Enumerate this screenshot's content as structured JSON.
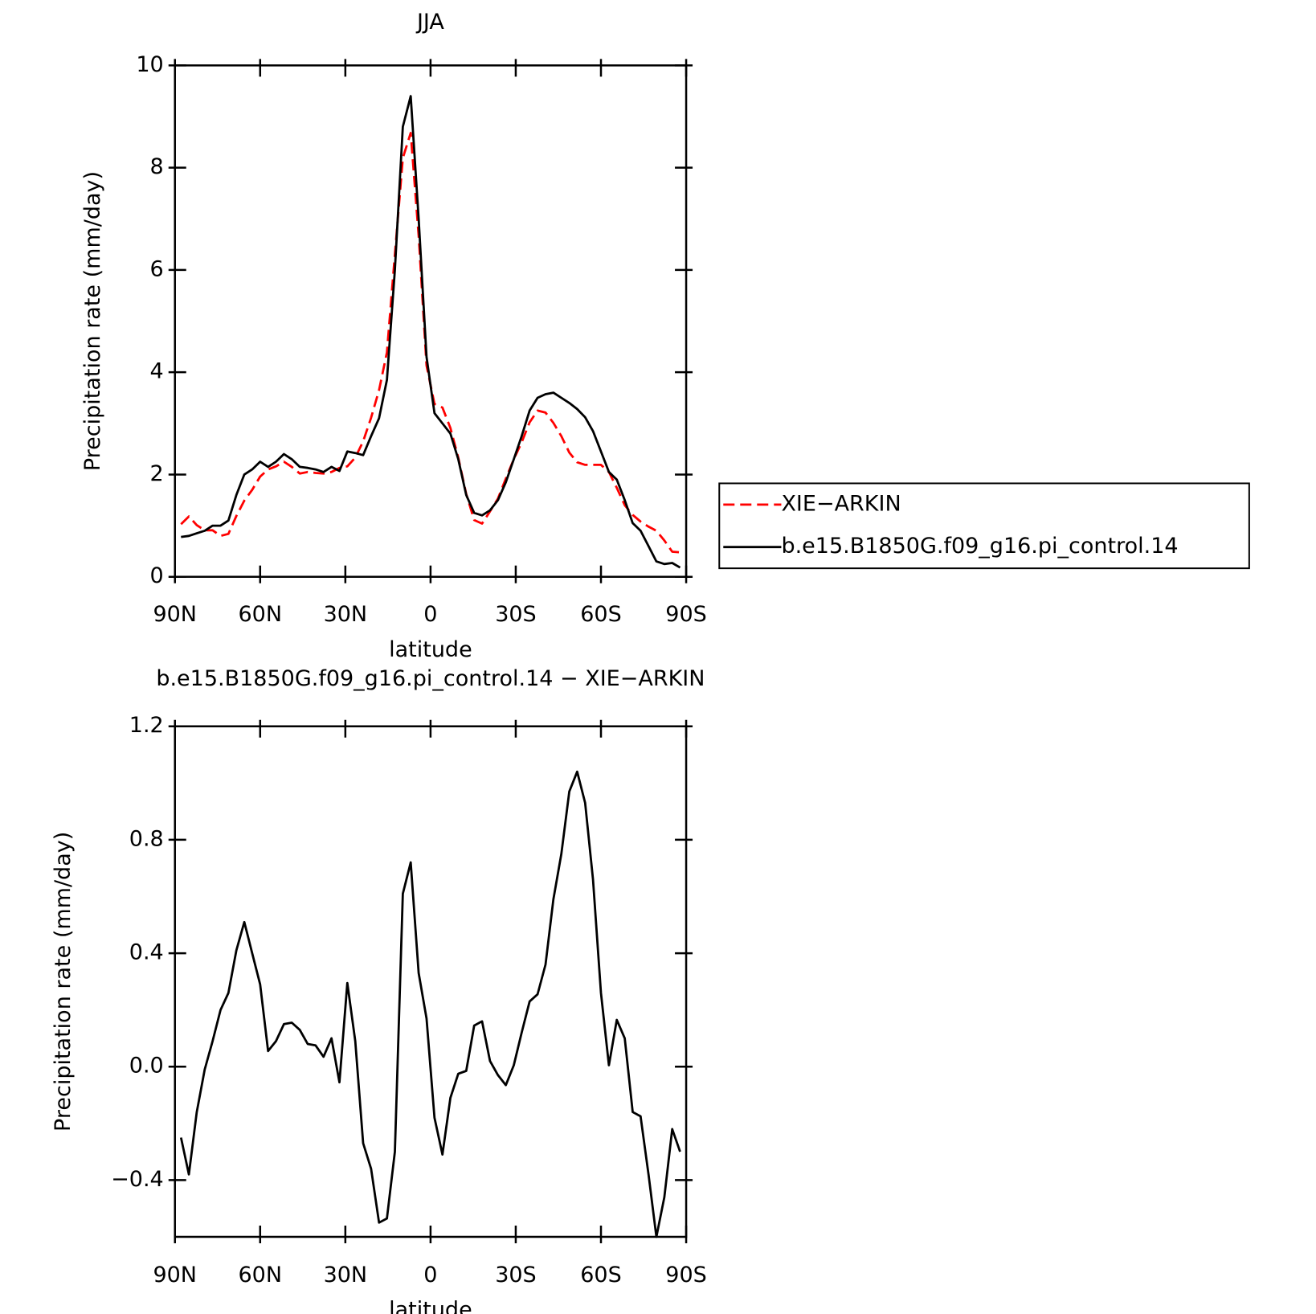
{
  "chart_data": [
    {
      "type": "line",
      "title": "JJA",
      "xlabel": "latitude",
      "ylabel": "Precipitation rate (mm/day)",
      "x": [
        87.86,
        85.1,
        82.31,
        79.53,
        76.74,
        73.95,
        71.16,
        68.37,
        65.58,
        62.79,
        60.0,
        57.21,
        54.42,
        51.63,
        48.84,
        46.05,
        43.26,
        40.47,
        37.67,
        34.88,
        32.09,
        29.3,
        26.51,
        23.72,
        20.93,
        18.14,
        15.35,
        12.56,
        9.77,
        6.98,
        4.19,
        1.4,
        -1.4,
        -4.19,
        -6.98,
        -9.77,
        -12.56,
        -15.35,
        -18.14,
        -20.93,
        -23.72,
        -26.51,
        -29.3,
        -32.09,
        -34.88,
        -37.67,
        -40.47,
        -43.26,
        -46.05,
        -48.84,
        -51.63,
        -54.42,
        -57.21,
        -60.0,
        -62.79,
        -65.58,
        -68.37,
        -71.16,
        -73.95,
        -76.74,
        -79.53,
        -82.31,
        -85.1,
        -87.86
      ],
      "series": [
        {
          "name": "XIE−ARKIN",
          "color": "#ff0000",
          "dash": true,
          "values": [
            1.03,
            1.18,
            1.01,
            0.91,
            0.91,
            0.8,
            0.84,
            1.19,
            1.49,
            1.7,
            1.96,
            2.1,
            2.16,
            2.25,
            2.15,
            2.02,
            2.05,
            2.03,
            2.02,
            2.05,
            2.13,
            2.16,
            2.33,
            2.65,
            3.11,
            3.65,
            4.39,
            6.3,
            8.19,
            8.68,
            6.67,
            4.13,
            3.38,
            3.31,
            2.91,
            2.33,
            1.62,
            1.11,
            1.04,
            1.28,
            1.53,
            1.92,
            2.3,
            2.63,
            3.02,
            3.25,
            3.21,
            3.01,
            2.75,
            2.43,
            2.24,
            2.19,
            2.19,
            2.19,
            2.05,
            1.74,
            1.4,
            1.21,
            1.08,
            0.98,
            0.9,
            0.71,
            0.49,
            0.48
          ]
        },
        {
          "name": "b.e15.B1850G.f09_g16.pi_control.14",
          "color": "#000000",
          "dash": false,
          "values": [
            0.78,
            0.8,
            0.85,
            0.9,
            1.0,
            1.0,
            1.1,
            1.6,
            2.0,
            2.1,
            2.25,
            2.15,
            2.25,
            2.4,
            2.3,
            2.15,
            2.13,
            2.1,
            2.05,
            2.15,
            2.07,
            2.45,
            2.42,
            2.38,
            2.75,
            3.1,
            3.85,
            6.0,
            8.8,
            9.4,
            7.0,
            4.3,
            3.2,
            3.0,
            2.8,
            2.3,
            1.6,
            1.25,
            1.2,
            1.3,
            1.5,
            1.85,
            2.3,
            2.75,
            3.25,
            3.5,
            3.57,
            3.6,
            3.5,
            3.4,
            3.28,
            3.12,
            2.85,
            2.45,
            2.05,
            1.9,
            1.5,
            1.05,
            0.9,
            0.6,
            0.3,
            0.25,
            0.27,
            0.18
          ]
        }
      ],
      "xlim": [
        90,
        -90
      ],
      "xticks": [
        {
          "value": 90,
          "label": "90N"
        },
        {
          "value": 60,
          "label": "60N"
        },
        {
          "value": 30,
          "label": "30N"
        },
        0,
        {
          "value": -30,
          "label": "30S"
        },
        {
          "value": -60,
          "label": "60S"
        },
        {
          "value": -90,
          "label": "90S"
        }
      ],
      "ylim": [
        0,
        10
      ],
      "yticks": [
        0,
        2,
        4,
        6,
        8,
        10
      ],
      "legend": "right"
    },
    {
      "type": "line",
      "title": "b.e15.B1850G.f09_g16.pi_control.14 − XIE−ARKIN",
      "xlabel": "latitude",
      "ylabel": "Precipitation rate (mm/day)",
      "x": [
        87.86,
        85.1,
        82.31,
        79.53,
        76.74,
        73.95,
        71.16,
        68.37,
        65.58,
        62.79,
        60.0,
        57.21,
        54.42,
        51.63,
        48.84,
        46.05,
        43.26,
        40.47,
        37.67,
        34.88,
        32.09,
        29.3,
        26.51,
        23.72,
        20.93,
        18.14,
        15.35,
        12.56,
        9.77,
        6.98,
        4.19,
        1.4,
        -1.4,
        -4.19,
        -6.98,
        -9.77,
        -12.56,
        -15.35,
        -18.14,
        -20.93,
        -23.72,
        -26.51,
        -29.3,
        -32.09,
        -34.88,
        -37.67,
        -40.47,
        -43.26,
        -46.05,
        -48.84,
        -51.63,
        -54.42,
        -57.21,
        -60.0,
        -62.79,
        -65.58,
        -68.37,
        -71.16,
        -73.95,
        -76.74,
        -79.53,
        -82.31,
        -85.1,
        -87.86
      ],
      "series": [
        {
          "color": "#000000",
          "dash": false,
          "values": [
            -0.25,
            -0.38,
            -0.16,
            -0.01,
            0.09,
            0.2,
            0.26,
            0.41,
            0.51,
            0.4,
            0.29,
            0.055,
            0.09,
            0.15,
            0.155,
            0.13,
            0.08,
            0.075,
            0.035,
            0.1,
            -0.055,
            0.295,
            0.09,
            -0.27,
            -0.36,
            -0.55,
            -0.535,
            -0.3,
            0.61,
            0.72,
            0.33,
            0.17,
            -0.18,
            -0.31,
            -0.11,
            -0.025,
            -0.015,
            0.145,
            0.16,
            0.02,
            -0.03,
            -0.065,
            0.005,
            0.12,
            0.23,
            0.255,
            0.36,
            0.59,
            0.75,
            0.97,
            1.04,
            0.93,
            0.66,
            0.26,
            0.005,
            0.165,
            0.1,
            -0.16,
            -0.175,
            -0.38,
            -0.6,
            -0.46,
            -0.22,
            -0.3
          ]
        }
      ],
      "xlim": [
        90,
        -90
      ],
      "xticks": [
        {
          "value": 90,
          "label": "90N"
        },
        {
          "value": 60,
          "label": "60N"
        },
        {
          "value": 30,
          "label": "30N"
        },
        0,
        {
          "value": -30,
          "label": "30S"
        },
        {
          "value": -60,
          "label": "60S"
        },
        {
          "value": -90,
          "label": "90S"
        }
      ],
      "ylim": [
        -0.6,
        1.2
      ],
      "yticks": [
        {
          "value": -0.4,
          "label": "−0.4"
        },
        {
          "value": 0,
          "label": "0.0"
        },
        0.4,
        0.8,
        1.2
      ]
    }
  ]
}
